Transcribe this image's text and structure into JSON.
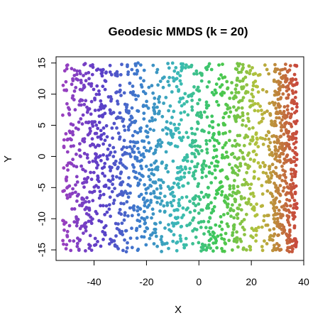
{
  "chart_data": {
    "type": "scatter",
    "title": "Geodesic MMDS (k = 20)",
    "xlabel": "X",
    "ylabel": "Y",
    "xlim": [
      -54.5,
      40
    ],
    "ylim": [
      -16.7,
      16.0
    ],
    "x_ticks": [
      -40,
      -20,
      0,
      20,
      40
    ],
    "y_ticks": [
      -15,
      -10,
      -5,
      0,
      5,
      10,
      15
    ],
    "x_tick_labels": [
      "-40",
      "-20",
      "0",
      "20",
      "40"
    ],
    "y_tick_labels": [
      "-15",
      "-10",
      "-5",
      "0",
      "5",
      "10",
      "15"
    ],
    "grid": false,
    "legend": "none",
    "point_count": 2000,
    "point_extent": {
      "x": [
        -52,
        37.5
      ],
      "y": [
        -15.3,
        15.0
      ]
    },
    "color_gradient_by_x": [
      "#9a3fbf",
      "#5a3fc8",
      "#3c7fcc",
      "#3bbbb4",
      "#40c850",
      "#b6c03c",
      "#c8463c"
    ],
    "series": [
      {
        "values": "2000 points uniformly spread over the point extent, colored by x position along the gradient"
      }
    ]
  }
}
